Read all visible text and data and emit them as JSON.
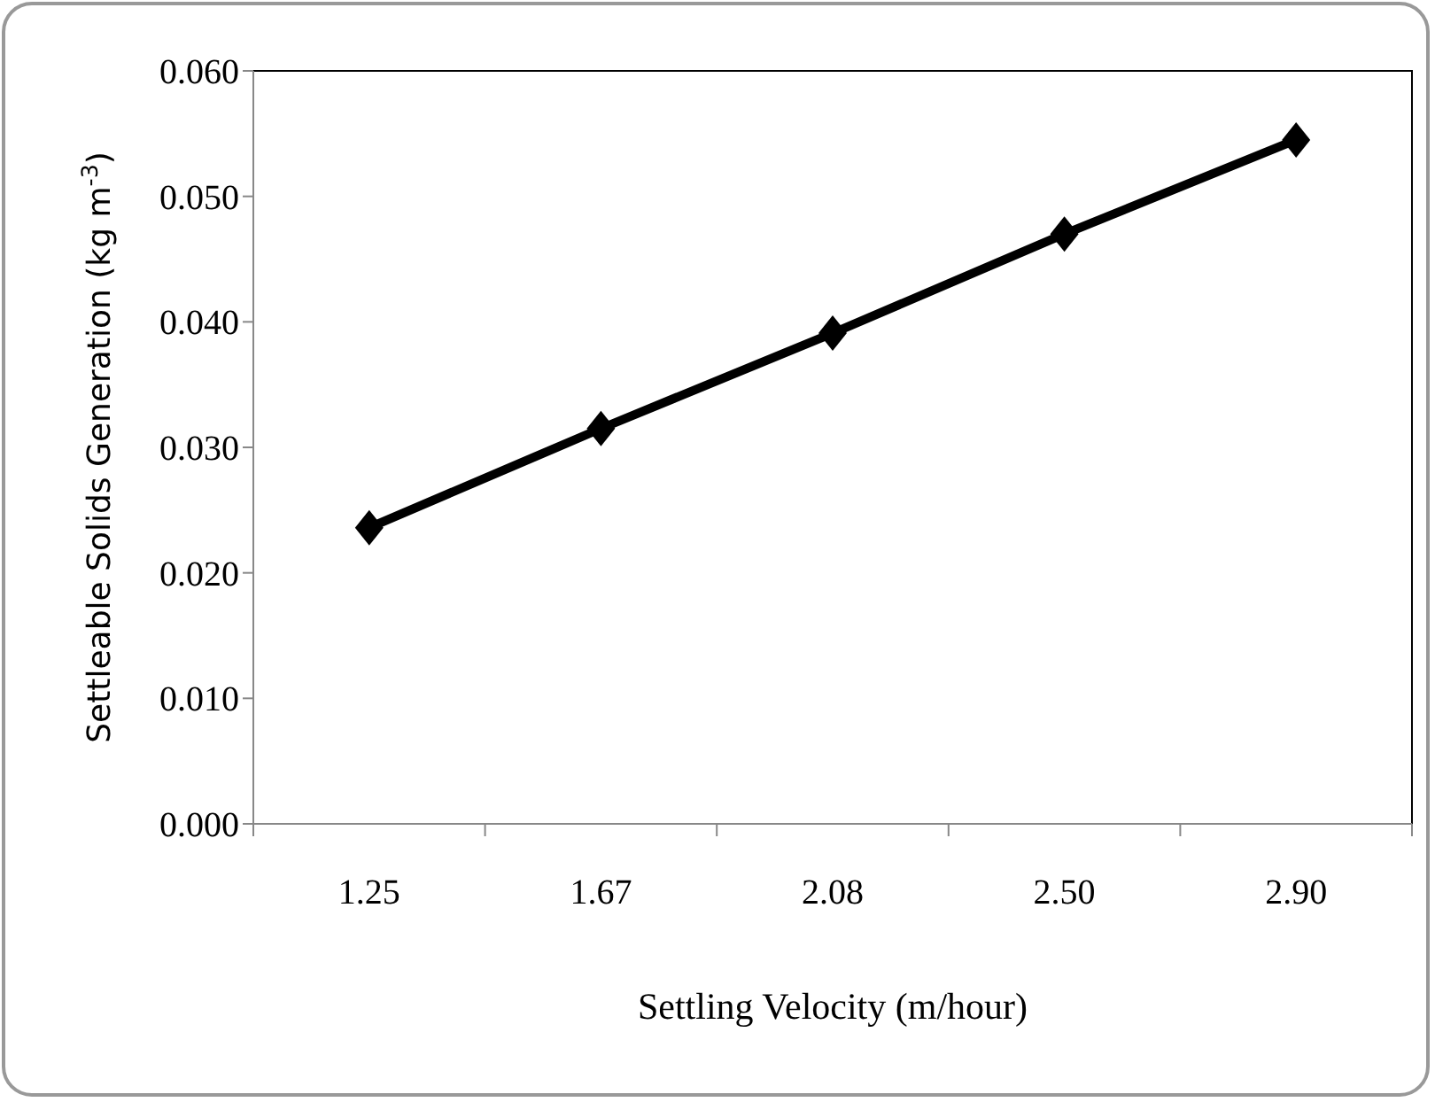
{
  "chart_data": {
    "type": "line",
    "xlabel": "Settling Velocity (m/hour)",
    "ylabel": "Settleable Solids Generation (kg  m$^{-3}$)",
    "categories": [
      "1.25",
      "1.67",
      "2.08",
      "2.50",
      "2.90"
    ],
    "series": [
      {
        "color": "#000000",
        "values": [
          0.0236,
          0.0315,
          0.0391,
          0.047,
          0.0545
        ]
      }
    ],
    "ylim": [
      0,
      0.06
    ],
    "yticks": [
      {
        "value": 0,
        "label": "0.000"
      },
      {
        "value": 0.01,
        "label": "0.010"
      },
      {
        "value": 0.02,
        "label": "0.020"
      },
      {
        "value": 0.03,
        "label": "0.030"
      },
      {
        "value": 0.04,
        "label": "0.040"
      },
      {
        "value": 0.05,
        "label": "0.050"
      },
      {
        "value": 0.06,
        "label": "0.060"
      }
    ],
    "marker": "diamond",
    "line_style": "solid",
    "grid": false
  }
}
